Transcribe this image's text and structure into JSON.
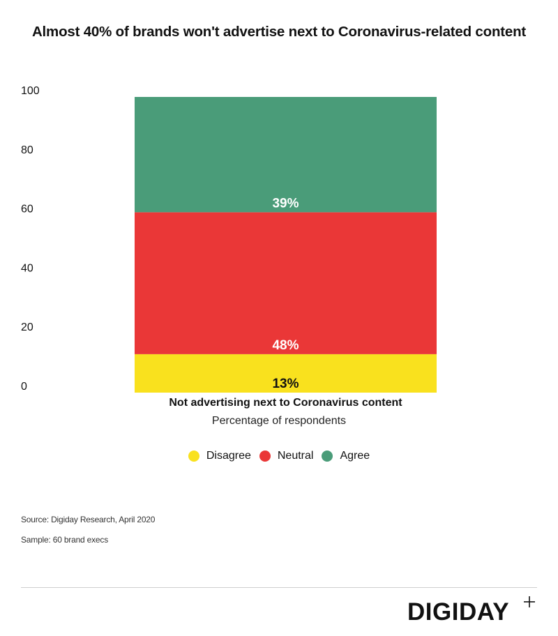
{
  "title": "Almost 40% of brands won't advertise next to Coronavirus-related content",
  "chart_data": {
    "type": "bar",
    "stacked": true,
    "categories": [
      "Not advertising next to Coronavirus content"
    ],
    "series": [
      {
        "name": "Disagree",
        "values": [
          13
        ],
        "label": "13%",
        "color": "#f9e11e",
        "label_color": "#111111"
      },
      {
        "name": "Neutral",
        "values": [
          48
        ],
        "label": "48%",
        "color": "#ea3737",
        "label_color": "#ffffff"
      },
      {
        "name": "Agree",
        "values": [
          39
        ],
        "label": "39%",
        "color": "#4a9c79",
        "label_color": "#ffffff"
      }
    ],
    "yticks": [
      "0",
      "20",
      "40",
      "60",
      "80",
      "100"
    ],
    "ylim": [
      0,
      100
    ],
    "xlabel": "Percentage of respondents",
    "ylabel": "",
    "grid": false,
    "legend_position": "bottom"
  },
  "footer": {
    "source": "Source: Digiday Research, April 2020",
    "sample": "Sample: 60 brand execs",
    "logo": "DIGIDAY"
  }
}
